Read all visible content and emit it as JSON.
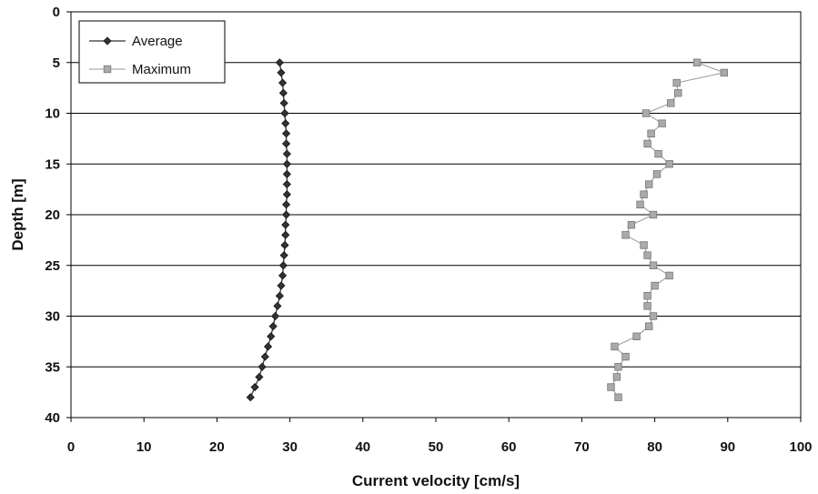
{
  "chart_data": {
    "type": "line",
    "title": "",
    "xlabel": "Current velocity [cm/s]",
    "ylabel": "Depth [m]",
    "xlim": [
      0,
      100
    ],
    "ylim": [
      0,
      40
    ],
    "y_inverted": true,
    "x_ticks": [
      "0",
      "10",
      "20",
      "30",
      "40",
      "50",
      "60",
      "70",
      "80",
      "90",
      "100"
    ],
    "y_ticks": [
      "0",
      "5",
      "10",
      "15",
      "20",
      "25",
      "30",
      "35",
      "40"
    ],
    "grid": "horizontal at major y ticks",
    "legend_position": "top-left",
    "series": [
      {
        "name": "Average",
        "color": "#333333",
        "marker": "diamond",
        "points": [
          {
            "x": 28.6,
            "y": 5
          },
          {
            "x": 28.8,
            "y": 6
          },
          {
            "x": 29.0,
            "y": 7
          },
          {
            "x": 29.1,
            "y": 8
          },
          {
            "x": 29.2,
            "y": 9
          },
          {
            "x": 29.3,
            "y": 10
          },
          {
            "x": 29.4,
            "y": 11
          },
          {
            "x": 29.5,
            "y": 12
          },
          {
            "x": 29.5,
            "y": 13
          },
          {
            "x": 29.6,
            "y": 14
          },
          {
            "x": 29.6,
            "y": 15
          },
          {
            "x": 29.6,
            "y": 16
          },
          {
            "x": 29.6,
            "y": 17
          },
          {
            "x": 29.6,
            "y": 18
          },
          {
            "x": 29.5,
            "y": 19
          },
          {
            "x": 29.5,
            "y": 20
          },
          {
            "x": 29.4,
            "y": 21
          },
          {
            "x": 29.4,
            "y": 22
          },
          {
            "x": 29.3,
            "y": 23
          },
          {
            "x": 29.2,
            "y": 24
          },
          {
            "x": 29.1,
            "y": 25
          },
          {
            "x": 29.0,
            "y": 26
          },
          {
            "x": 28.8,
            "y": 27
          },
          {
            "x": 28.6,
            "y": 28
          },
          {
            "x": 28.3,
            "y": 29
          },
          {
            "x": 28.0,
            "y": 30
          },
          {
            "x": 27.7,
            "y": 31
          },
          {
            "x": 27.4,
            "y": 32
          },
          {
            "x": 27.0,
            "y": 33
          },
          {
            "x": 26.6,
            "y": 34
          },
          {
            "x": 26.2,
            "y": 35
          },
          {
            "x": 25.8,
            "y": 36
          },
          {
            "x": 25.2,
            "y": 37
          },
          {
            "x": 24.6,
            "y": 38
          }
        ]
      },
      {
        "name": "Maximum",
        "color": "#aaaaaa",
        "marker": "square",
        "points": [
          {
            "x": 85.8,
            "y": 5
          },
          {
            "x": 89.5,
            "y": 6
          },
          {
            "x": 83.0,
            "y": 7
          },
          {
            "x": 83.2,
            "y": 8
          },
          {
            "x": 82.2,
            "y": 9
          },
          {
            "x": 78.8,
            "y": 10
          },
          {
            "x": 81.0,
            "y": 11
          },
          {
            "x": 79.5,
            "y": 12
          },
          {
            "x": 79.0,
            "y": 13
          },
          {
            "x": 80.5,
            "y": 14
          },
          {
            "x": 82.0,
            "y": 15
          },
          {
            "x": 80.3,
            "y": 16
          },
          {
            "x": 79.2,
            "y": 17
          },
          {
            "x": 78.5,
            "y": 18
          },
          {
            "x": 78.0,
            "y": 19
          },
          {
            "x": 79.8,
            "y": 20
          },
          {
            "x": 76.8,
            "y": 21
          },
          {
            "x": 76.0,
            "y": 22
          },
          {
            "x": 78.5,
            "y": 23
          },
          {
            "x": 79.0,
            "y": 24
          },
          {
            "x": 79.8,
            "y": 25
          },
          {
            "x": 82.0,
            "y": 26
          },
          {
            "x": 80.0,
            "y": 27
          },
          {
            "x": 79.0,
            "y": 28
          },
          {
            "x": 79.0,
            "y": 29
          },
          {
            "x": 79.8,
            "y": 30
          },
          {
            "x": 79.2,
            "y": 31
          },
          {
            "x": 77.5,
            "y": 32
          },
          {
            "x": 74.5,
            "y": 33
          },
          {
            "x": 76.0,
            "y": 34
          },
          {
            "x": 75.0,
            "y": 35
          },
          {
            "x": 74.8,
            "y": 36
          },
          {
            "x": 74.0,
            "y": 37
          },
          {
            "x": 75.0,
            "y": 38
          }
        ]
      }
    ]
  }
}
